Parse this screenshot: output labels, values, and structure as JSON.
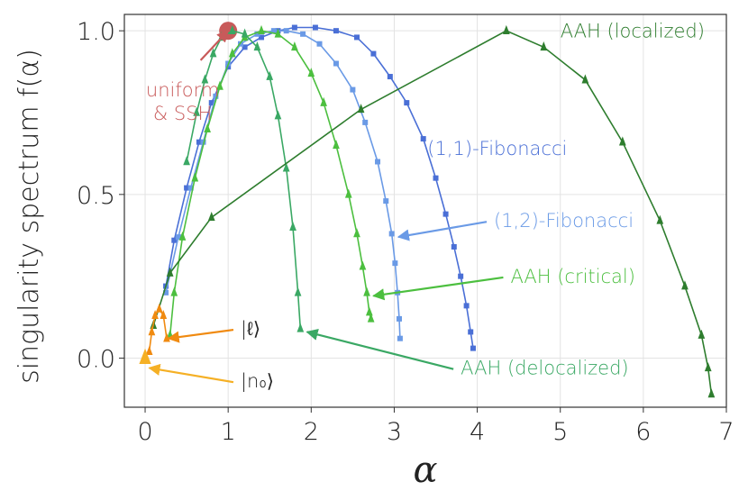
{
  "chart_data": {
    "type": "line",
    "xlabel": "α",
    "ylabel": "singularity spectrum f(α)",
    "xlim": [
      -0.25,
      7.0
    ],
    "ylim": [
      -0.15,
      1.05
    ],
    "grid": true,
    "xticks": [
      "0",
      "1",
      "2",
      "3",
      "4",
      "5",
      "6",
      "7"
    ],
    "yticks": [
      "0.0",
      "0.5",
      "1.0"
    ],
    "series": [
      {
        "name": "uniform & SSH",
        "marker": "circle",
        "color": "#c85a5a",
        "points": [
          [
            1.0,
            1.0
          ]
        ]
      },
      {
        "name": "(1,1)-Fibonacci",
        "marker": "square",
        "color": "#4a6fd6",
        "points": [
          [
            0.25,
            0.22
          ],
          [
            0.35,
            0.36
          ],
          [
            0.5,
            0.52
          ],
          [
            0.65,
            0.66
          ],
          [
            0.8,
            0.78
          ],
          [
            1.0,
            0.89
          ],
          [
            1.2,
            0.95
          ],
          [
            1.4,
            0.98
          ],
          [
            1.6,
            1.0
          ],
          [
            1.8,
            1.01
          ],
          [
            2.05,
            1.01
          ],
          [
            2.3,
            1.0
          ],
          [
            2.55,
            0.98
          ],
          [
            2.75,
            0.93
          ],
          [
            2.95,
            0.86
          ],
          [
            3.15,
            0.78
          ],
          [
            3.35,
            0.67
          ],
          [
            3.5,
            0.55
          ],
          [
            3.62,
            0.44
          ],
          [
            3.72,
            0.34
          ],
          [
            3.8,
            0.25
          ],
          [
            3.87,
            0.16
          ],
          [
            3.92,
            0.08
          ],
          [
            3.95,
            0.03
          ]
        ]
      },
      {
        "name": "(1,2)-Fibonacci",
        "marker": "square",
        "color": "#6a9ae6",
        "points": [
          [
            0.25,
            0.2
          ],
          [
            0.4,
            0.37
          ],
          [
            0.55,
            0.52
          ],
          [
            0.7,
            0.66
          ],
          [
            0.85,
            0.8
          ],
          [
            1.0,
            0.9
          ],
          [
            1.15,
            0.96
          ],
          [
            1.35,
            0.99
          ],
          [
            1.55,
            1.0
          ],
          [
            1.7,
            1.0
          ],
          [
            1.9,
            0.99
          ],
          [
            2.1,
            0.96
          ],
          [
            2.3,
            0.9
          ],
          [
            2.5,
            0.82
          ],
          [
            2.65,
            0.72
          ],
          [
            2.8,
            0.6
          ],
          [
            2.9,
            0.48
          ],
          [
            2.97,
            0.38
          ],
          [
            3.01,
            0.29
          ],
          [
            3.04,
            0.2
          ],
          [
            3.06,
            0.12
          ],
          [
            3.07,
            0.06
          ]
        ]
      },
      {
        "name": "AAH (critical)",
        "marker": "triangle",
        "color": "#4cbf3f",
        "points": [
          [
            0.3,
            0.07
          ],
          [
            0.35,
            0.2
          ],
          [
            0.45,
            0.37
          ],
          [
            0.6,
            0.55
          ],
          [
            0.75,
            0.7
          ],
          [
            0.9,
            0.83
          ],
          [
            1.05,
            0.93
          ],
          [
            1.2,
            0.98
          ],
          [
            1.4,
            1.0
          ],
          [
            1.6,
            0.99
          ],
          [
            1.8,
            0.95
          ],
          [
            2.0,
            0.87
          ],
          [
            2.15,
            0.78
          ],
          [
            2.3,
            0.65
          ],
          [
            2.45,
            0.5
          ],
          [
            2.55,
            0.38
          ],
          [
            2.62,
            0.28
          ],
          [
            2.67,
            0.2
          ],
          [
            2.7,
            0.14
          ],
          [
            2.72,
            0.12
          ]
        ]
      },
      {
        "name": "AAH (delocalized)",
        "marker": "triangle",
        "color": "#3aa864",
        "points": [
          [
            0.5,
            0.6
          ],
          [
            0.62,
            0.75
          ],
          [
            0.72,
            0.85
          ],
          [
            0.82,
            0.93
          ],
          [
            0.92,
            0.98
          ],
          [
            1.05,
            1.0
          ],
          [
            1.2,
            0.99
          ],
          [
            1.35,
            0.95
          ],
          [
            1.5,
            0.86
          ],
          [
            1.6,
            0.74
          ],
          [
            1.7,
            0.58
          ],
          [
            1.78,
            0.4
          ],
          [
            1.84,
            0.2
          ],
          [
            1.87,
            0.09
          ]
        ]
      },
      {
        "name": "AAH (localized)",
        "marker": "triangle",
        "color": "#2e7d2e",
        "points": [
          [
            0.1,
            0.1
          ],
          [
            0.3,
            0.26
          ],
          [
            0.8,
            0.43
          ],
          [
            2.6,
            0.76
          ],
          [
            4.35,
            1.0
          ],
          [
            4.8,
            0.95
          ],
          [
            5.3,
            0.85
          ],
          [
            5.75,
            0.66
          ],
          [
            6.2,
            0.42
          ],
          [
            6.5,
            0.22
          ],
          [
            6.7,
            0.07
          ],
          [
            6.78,
            -0.03
          ],
          [
            6.82,
            -0.11
          ]
        ]
      },
      {
        "name": "|ℓ⟩",
        "marker": "triangle",
        "color": "#f08a10",
        "points": [
          [
            0.05,
            0.02
          ],
          [
            0.08,
            0.08
          ],
          [
            0.12,
            0.13
          ],
          [
            0.17,
            0.15
          ],
          [
            0.22,
            0.13
          ],
          [
            0.26,
            0.06
          ]
        ]
      },
      {
        "name": "|n₀⟩",
        "marker": "triangle",
        "color": "#f5b025",
        "points": [
          [
            0.0,
            0.0
          ]
        ]
      }
    ],
    "annotations": [
      {
        "text_lines": [
          "uniform",
          "& SSH"
        ],
        "color": "#c85a5a",
        "text_at": [
          -0.2,
          0.8
        ],
        "arrow_to": [
          1.0,
          1.0
        ]
      },
      {
        "text": "(1,1)-Fibonacci",
        "color": "#4a6fd6",
        "text_at": [
          3.4,
          0.62
        ]
      },
      {
        "text": "(1,2)-Fibonacci",
        "color": "#6a9ae6",
        "text_at": [
          4.2,
          0.4
        ],
        "arrow_to": [
          3.05,
          0.37
        ]
      },
      {
        "text": "AAH (critical)",
        "color": "#4cbf3f",
        "text_at": [
          4.4,
          0.23
        ],
        "arrow_to": [
          2.75,
          0.19
        ]
      },
      {
        "text": "AAH (delocalized)",
        "color": "#3aa864",
        "text_at": [
          3.8,
          -0.05
        ],
        "arrow_to": [
          1.95,
          0.08
        ]
      },
      {
        "text": "AAH (localized)",
        "color": "#2e7d2e",
        "text_at": [
          5.0,
          0.98
        ]
      },
      {
        "text": "|ℓ⟩",
        "color": "#222222",
        "text_at": [
          1.15,
          0.07
        ],
        "arrow_to": [
          0.28,
          0.06
        ],
        "arrow_color": "#f08a10"
      },
      {
        "text": "|n₀⟩",
        "color": "#222222",
        "text_at": [
          1.15,
          -0.09
        ],
        "arrow_to": [
          0.05,
          -0.03
        ],
        "arrow_color": "#f5b025"
      }
    ]
  }
}
